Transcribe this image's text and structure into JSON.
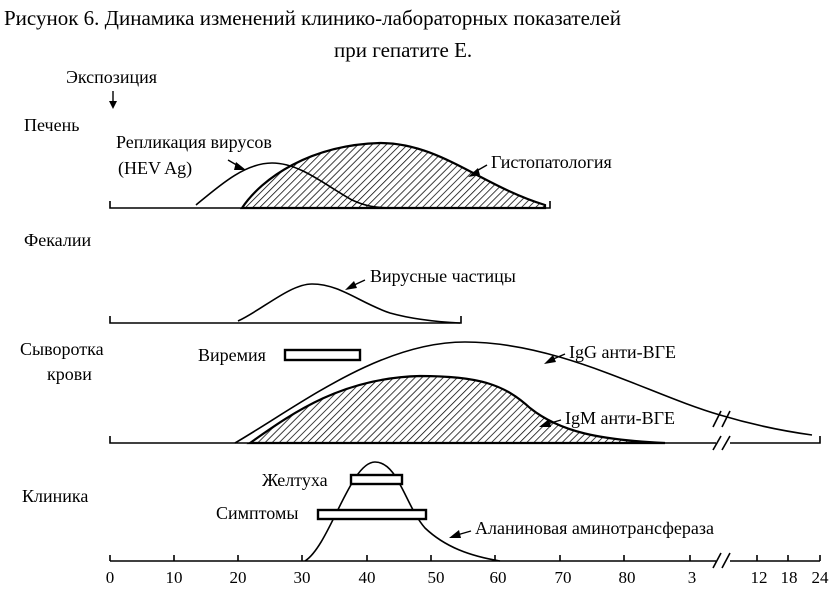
{
  "title": {
    "line1": "Рисунок 6. Динамика изменений клинико-лабораторных показателей",
    "line2": "при гепатите Е."
  },
  "exposure_label": "Экспозиция",
  "panels": {
    "liver": {
      "label": "Печень",
      "replication_label_line1": "Репликация вирусов",
      "replication_label_line2": "(HEV Ag)",
      "histopathology_label": "Гистопатология"
    },
    "feces": {
      "label": "Фекалии",
      "particles_label": "Вирусные частицы"
    },
    "serum": {
      "label_line1": "Сыворотка",
      "label_line2": "крови",
      "viremia_label": "Виремия",
      "igg_label": "IgG анти-ВГЕ",
      "igm_label": "IgM анти-ВГЕ"
    },
    "clinic": {
      "label": "Клиника",
      "jaundice_label": "Желтуха",
      "symptoms_label": "Симптомы",
      "alt_label": "Аланиновая аминотрансфераза"
    }
  },
  "axis": {
    "ticks": [
      "0",
      "10",
      "20",
      "30",
      "40",
      "50",
      "60",
      "70",
      "80",
      "3",
      "12",
      "18",
      "24"
    ],
    "break_symbol": "//"
  },
  "colors": {
    "ink": "#000000",
    "background": "#ffffff"
  }
}
